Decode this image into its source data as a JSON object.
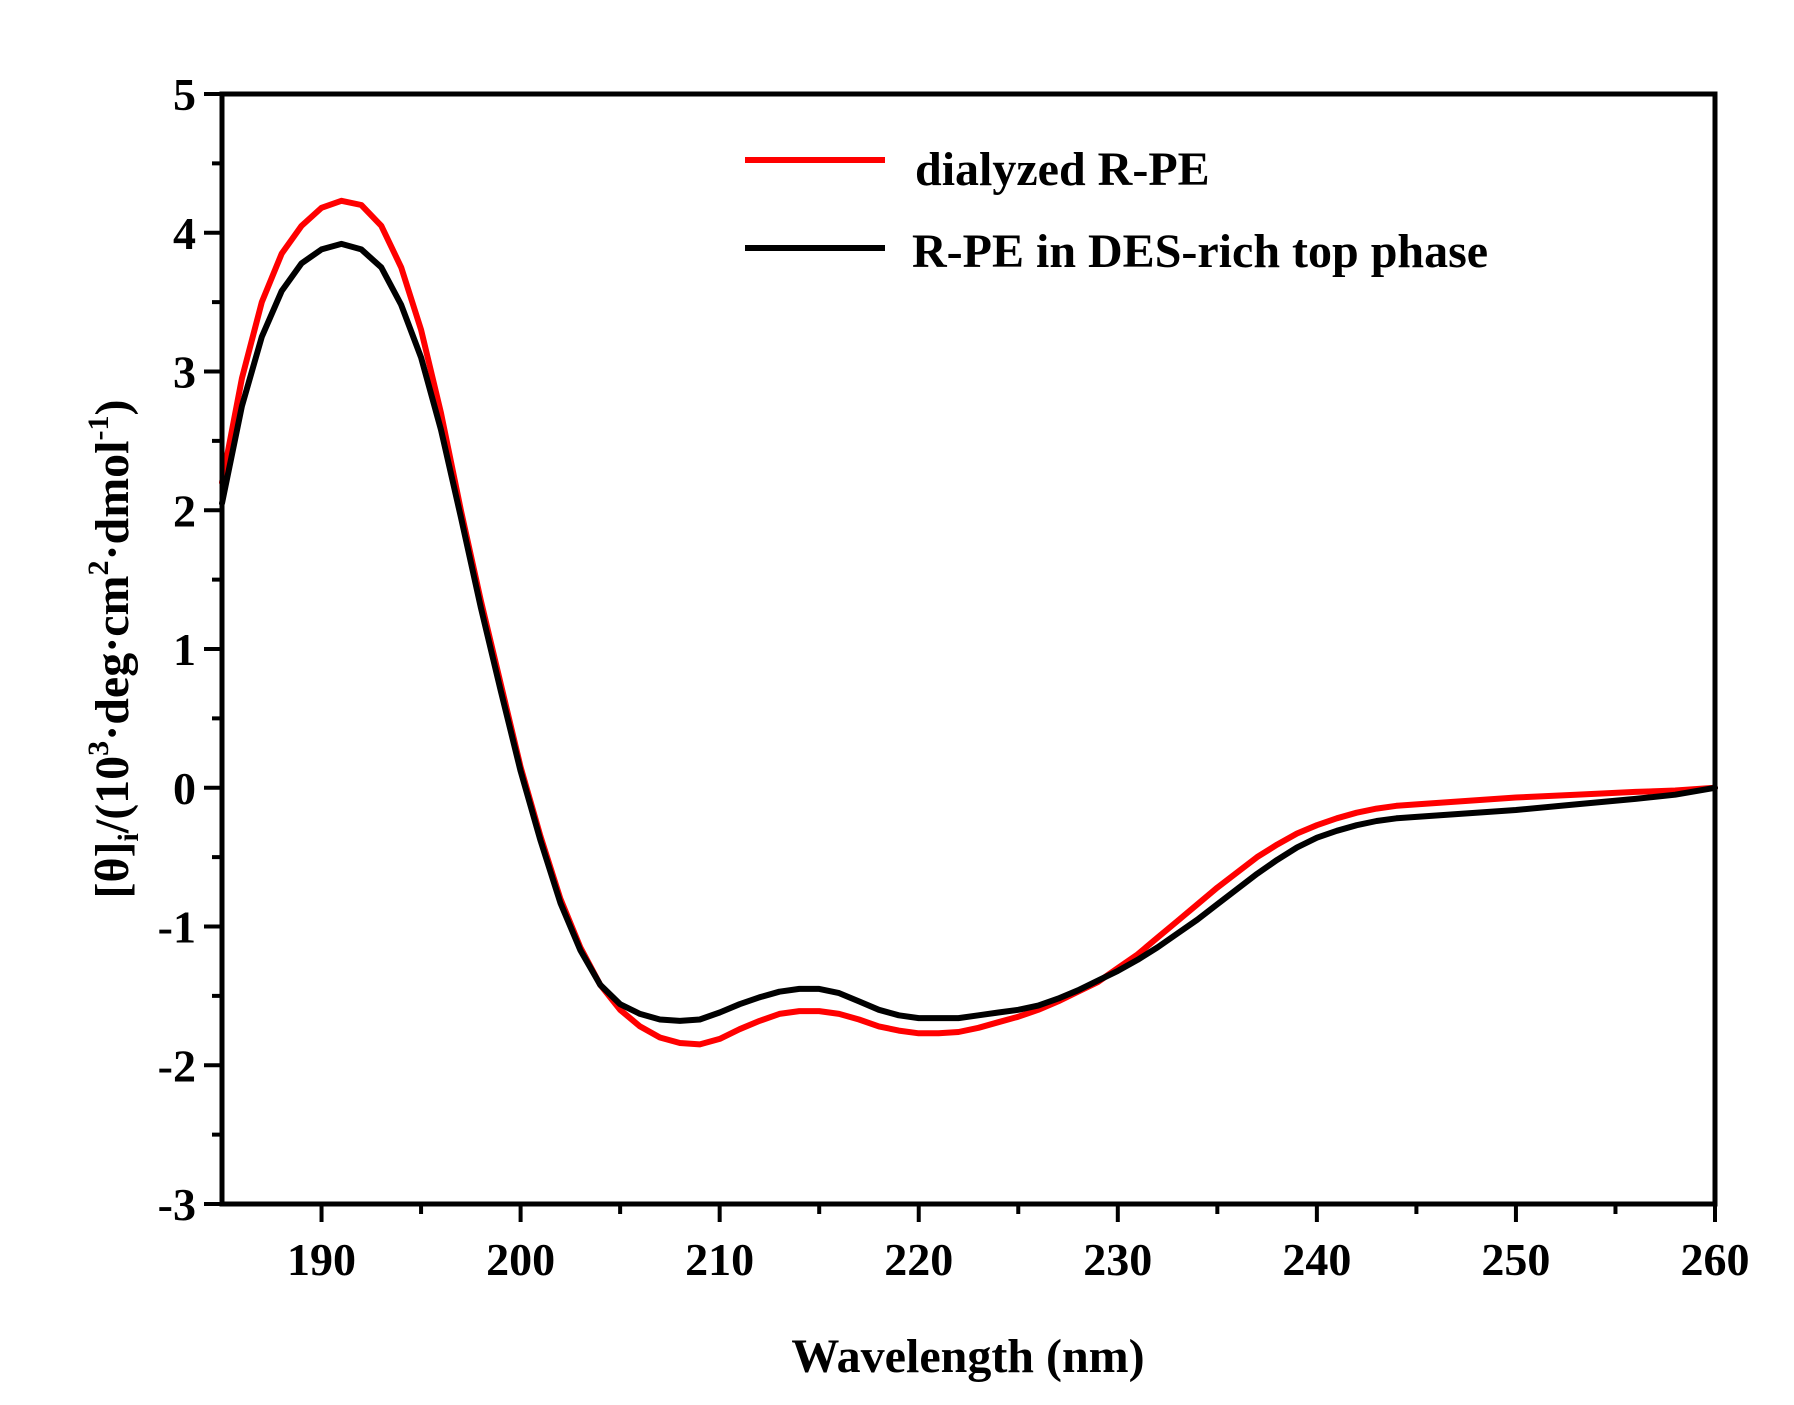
{
  "chart_data": {
    "type": "line",
    "title": "",
    "xlabel": "Wavelength (nm)",
    "ylabel_parts": {
      "base": "[θ]",
      "base_sub": "i",
      "open": "/(10",
      "exp_3": "3",
      "mid": "·deg·cm",
      "exp_2": "2",
      "tail": "·dmol",
      "exp_neg1": "-1",
      "close": ")"
    },
    "xlim": [
      185,
      260
    ],
    "ylim": [
      -3,
      5
    ],
    "x_ticks": [
      190,
      200,
      210,
      220,
      230,
      240,
      250,
      260
    ],
    "x_tick_labels": [
      "190",
      "200",
      "210",
      "220",
      "230",
      "240",
      "250",
      "260"
    ],
    "y_ticks": [
      -3,
      -2,
      -1,
      0,
      1,
      2,
      3,
      4,
      5
    ],
    "y_tick_labels": [
      "-3",
      "-2",
      "-1",
      "0",
      "1",
      "2",
      "3",
      "4",
      "5"
    ],
    "legend_position": "top-right",
    "series": [
      {
        "name": "dialyzed R-PE",
        "color": "#ff0000",
        "points": [
          [
            185,
            2.2
          ],
          [
            186,
            2.95
          ],
          [
            187,
            3.5
          ],
          [
            188,
            3.85
          ],
          [
            189,
            4.05
          ],
          [
            190,
            4.18
          ],
          [
            191,
            4.23
          ],
          [
            192,
            4.2
          ],
          [
            193,
            4.05
          ],
          [
            194,
            3.75
          ],
          [
            195,
            3.3
          ],
          [
            196,
            2.7
          ],
          [
            197,
            2.0
          ],
          [
            198,
            1.35
          ],
          [
            199,
            0.75
          ],
          [
            200,
            0.15
          ],
          [
            201,
            -0.35
          ],
          [
            202,
            -0.8
          ],
          [
            203,
            -1.15
          ],
          [
            204,
            -1.42
          ],
          [
            205,
            -1.6
          ],
          [
            206,
            -1.72
          ],
          [
            207,
            -1.8
          ],
          [
            208,
            -1.84
          ],
          [
            209,
            -1.85
          ],
          [
            210,
            -1.81
          ],
          [
            211,
            -1.74
          ],
          [
            212,
            -1.68
          ],
          [
            213,
            -1.63
          ],
          [
            214,
            -1.61
          ],
          [
            215,
            -1.61
          ],
          [
            216,
            -1.63
          ],
          [
            217,
            -1.67
          ],
          [
            218,
            -1.72
          ],
          [
            219,
            -1.75
          ],
          [
            220,
            -1.77
          ],
          [
            221,
            -1.77
          ],
          [
            222,
            -1.76
          ],
          [
            223,
            -1.73
          ],
          [
            224,
            -1.69
          ],
          [
            225,
            -1.65
          ],
          [
            226,
            -1.6
          ],
          [
            227,
            -1.54
          ],
          [
            228,
            -1.47
          ],
          [
            229,
            -1.4
          ],
          [
            230,
            -1.3
          ],
          [
            231,
            -1.2
          ],
          [
            232,
            -1.08
          ],
          [
            233,
            -0.96
          ],
          [
            234,
            -0.84
          ],
          [
            235,
            -0.72
          ],
          [
            236,
            -0.61
          ],
          [
            237,
            -0.5
          ],
          [
            238,
            -0.41
          ],
          [
            239,
            -0.33
          ],
          [
            240,
            -0.27
          ],
          [
            241,
            -0.22
          ],
          [
            242,
            -0.18
          ],
          [
            243,
            -0.15
          ],
          [
            244,
            -0.13
          ],
          [
            245,
            -0.12
          ],
          [
            247,
            -0.1
          ],
          [
            250,
            -0.07
          ],
          [
            253,
            -0.05
          ],
          [
            256,
            -0.03
          ],
          [
            258,
            -0.02
          ],
          [
            260,
            0.0
          ]
        ]
      },
      {
        "name": "R-PE in DES-rich top phase",
        "color": "#000000",
        "points": [
          [
            185,
            2.05
          ],
          [
            186,
            2.75
          ],
          [
            187,
            3.25
          ],
          [
            188,
            3.58
          ],
          [
            189,
            3.78
          ],
          [
            190,
            3.88
          ],
          [
            191,
            3.92
          ],
          [
            192,
            3.88
          ],
          [
            193,
            3.75
          ],
          [
            194,
            3.48
          ],
          [
            195,
            3.1
          ],
          [
            196,
            2.58
          ],
          [
            197,
            1.95
          ],
          [
            198,
            1.3
          ],
          [
            199,
            0.7
          ],
          [
            200,
            0.12
          ],
          [
            201,
            -0.38
          ],
          [
            202,
            -0.83
          ],
          [
            203,
            -1.17
          ],
          [
            204,
            -1.42
          ],
          [
            205,
            -1.56
          ],
          [
            206,
            -1.63
          ],
          [
            207,
            -1.67
          ],
          [
            208,
            -1.68
          ],
          [
            209,
            -1.67
          ],
          [
            210,
            -1.62
          ],
          [
            211,
            -1.56
          ],
          [
            212,
            -1.51
          ],
          [
            213,
            -1.47
          ],
          [
            214,
            -1.45
          ],
          [
            215,
            -1.45
          ],
          [
            216,
            -1.48
          ],
          [
            217,
            -1.54
          ],
          [
            218,
            -1.6
          ],
          [
            219,
            -1.64
          ],
          [
            220,
            -1.66
          ],
          [
            221,
            -1.66
          ],
          [
            222,
            -1.66
          ],
          [
            223,
            -1.64
          ],
          [
            224,
            -1.62
          ],
          [
            225,
            -1.6
          ],
          [
            226,
            -1.57
          ],
          [
            227,
            -1.52
          ],
          [
            228,
            -1.46
          ],
          [
            229,
            -1.39
          ],
          [
            230,
            -1.32
          ],
          [
            231,
            -1.24
          ],
          [
            232,
            -1.15
          ],
          [
            233,
            -1.05
          ],
          [
            234,
            -0.95
          ],
          [
            235,
            -0.84
          ],
          [
            236,
            -0.73
          ],
          [
            237,
            -0.62
          ],
          [
            238,
            -0.52
          ],
          [
            239,
            -0.43
          ],
          [
            240,
            -0.36
          ],
          [
            241,
            -0.31
          ],
          [
            242,
            -0.27
          ],
          [
            243,
            -0.24
          ],
          [
            244,
            -0.22
          ],
          [
            245,
            -0.21
          ],
          [
            247,
            -0.19
          ],
          [
            250,
            -0.16
          ],
          [
            253,
            -0.12
          ],
          [
            256,
            -0.08
          ],
          [
            258,
            -0.05
          ],
          [
            260,
            0.0
          ]
        ]
      }
    ]
  }
}
